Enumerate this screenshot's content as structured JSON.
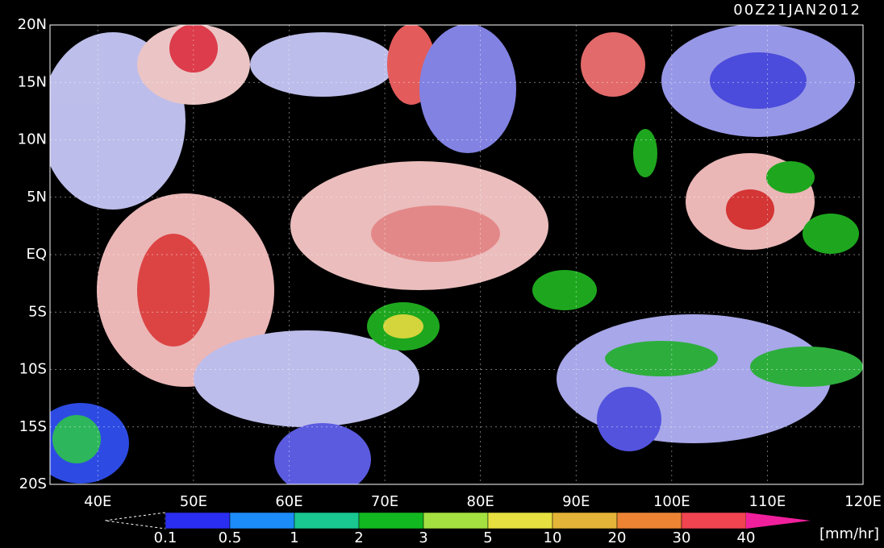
{
  "title": "00Z21JAN2012",
  "lat_labels": [
    "20N",
    "15N",
    "10N",
    "5N",
    "EQ",
    "5S",
    "10S",
    "15S",
    "20S"
  ],
  "lon_labels": [
    "40E",
    "50E",
    "60E",
    "70E",
    "80E",
    "90E",
    "100E",
    "110E",
    "120E"
  ],
  "colorbar": {
    "labels": [
      "0.1",
      "0.5",
      "1",
      "2",
      "3",
      "5",
      "10",
      "20",
      "30",
      "40"
    ],
    "colors": [
      "#2a2ef0",
      "#1c8cf8",
      "#18c890",
      "#12b820",
      "#a4e040",
      "#e6e040",
      "#e4b438",
      "#ec8434",
      "#f04450"
    ],
    "over_color": "#f0209c",
    "unit": "[mm/hr]"
  }
}
